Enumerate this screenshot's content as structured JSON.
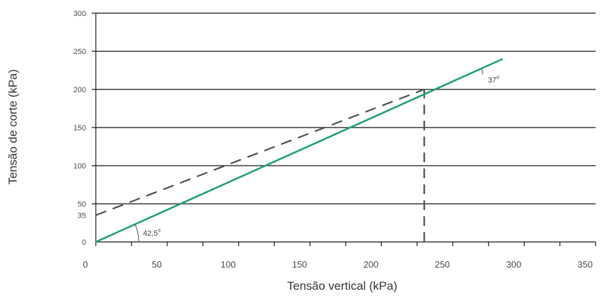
{
  "chart_data": {
    "type": "line",
    "xlabel": "Tensão vertical (kPa)",
    "ylabel": "Tensão de corte (kPa)",
    "xlim": [
      0,
      350
    ],
    "ylim": [
      0,
      300
    ],
    "x_ticks": [
      "0",
      "50",
      "100",
      "150",
      "200",
      "250",
      "300",
      "350"
    ],
    "y_ticks": [
      "0",
      "35",
      "50",
      "100",
      "150",
      "200",
      "250",
      "300"
    ],
    "grid": "horizontal",
    "series": [
      {
        "style": "solid",
        "color": "#1e9e78",
        "x": [
          0,
          285
        ],
        "y": [
          0,
          240
        ]
      },
      {
        "style": "dashed",
        "color": "#4d4d4d",
        "x": [
          0,
          230
        ],
        "y": [
          35,
          200
        ]
      }
    ],
    "reference_lines": [
      {
        "style": "dashed",
        "color": "#4d4d4d",
        "x": [
          230,
          230
        ],
        "y": [
          0,
          200
        ]
      }
    ],
    "annotations": [
      {
        "text": "42,5",
        "sup": "0"
      },
      {
        "text": "37",
        "sup": "0"
      }
    ]
  },
  "colors": {
    "grid": "#111111",
    "solid_line": "#1e9e78",
    "dashed_line": "#4d4d4d"
  }
}
